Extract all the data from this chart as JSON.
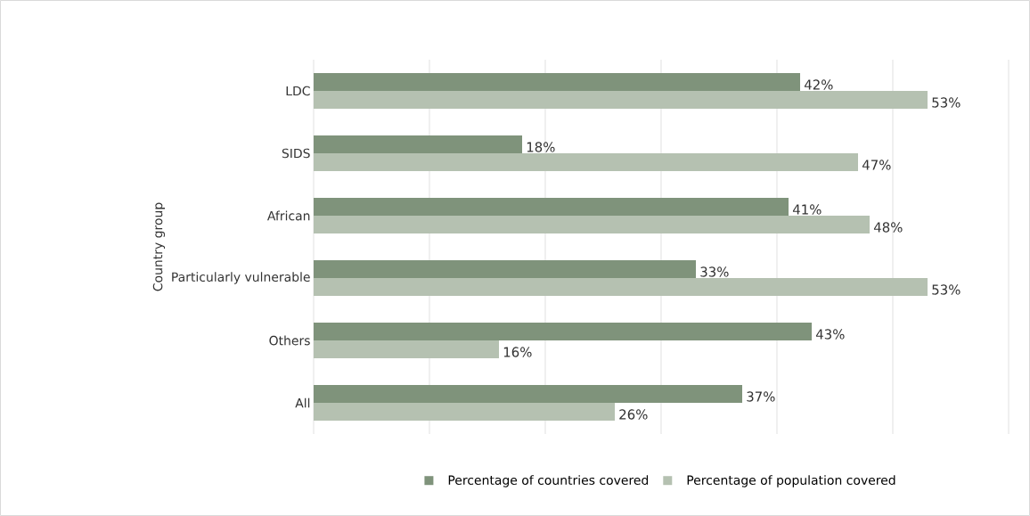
{
  "chart_data": {
    "type": "bar",
    "orientation": "horizontal",
    "ylabel": "Country group",
    "categories": [
      "LDC",
      "SIDS",
      "African",
      "Particularly vulnerable",
      "Others",
      "All"
    ],
    "series": [
      {
        "name": "Percentage of countries covered",
        "color": "#7f937b",
        "values": [
          42,
          18,
          41,
          33,
          43,
          37
        ],
        "value_labels": [
          "42%",
          "18%",
          "41%",
          "33%",
          "43%",
          "37%"
        ]
      },
      {
        "name": "Percentage of population covered",
        "color": "#b5c1b1",
        "values": [
          53,
          47,
          48,
          53,
          16,
          26
        ],
        "value_labels": [
          "53%",
          "47%",
          "48%",
          "53%",
          "16%",
          "26%"
        ]
      }
    ],
    "xlim": [
      0,
      60
    ],
    "xticks": [
      {
        "value": 0,
        "label": null
      },
      {
        "value": 10,
        "label": null
      },
      {
        "value": 20,
        "label": null
      },
      {
        "value": 30,
        "label": null
      },
      {
        "value": 40,
        "label": null
      },
      {
        "value": 50,
        "label": null
      },
      {
        "value": 60,
        "label": null
      }
    ],
    "tick_labels": "y",
    "grid": "x",
    "legend": "bottom"
  }
}
